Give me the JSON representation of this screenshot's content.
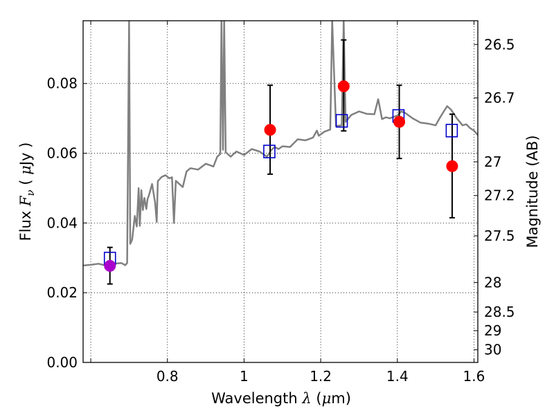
{
  "chart_data": {
    "type": "scatter",
    "xlabel": {
      "prefix": "Wavelength",
      "symbol": "λ",
      "unit_open": "(",
      "unit_mu": "μ",
      "unit_rest": "m)"
    },
    "ylabel": {
      "prefix": "Flux",
      "symbol": "F",
      "subscript": "ν",
      "unit_open": "(",
      "unit_mu": "μ",
      "unit_rest": "Jy",
      "unit_close": ")"
    },
    "y2label": "Magnitude (AB)",
    "xlim": [
      0.58,
      1.61
    ],
    "ylim": [
      0.0,
      0.098
    ],
    "x_ticks": [
      {
        "value": 0.6,
        "label": ""
      },
      {
        "value": 0.8,
        "label": "0.8"
      },
      {
        "value": 1.0,
        "label": "1"
      },
      {
        "value": 1.2,
        "label": "1.2"
      },
      {
        "value": 1.4,
        "label": "1.4"
      },
      {
        "value": 1.6,
        "label": "1.6"
      }
    ],
    "y_ticks": [
      {
        "value": 0.0,
        "label": "0.00"
      },
      {
        "value": 0.02,
        "label": "0.02"
      },
      {
        "value": 0.04,
        "label": "0.04"
      },
      {
        "value": 0.06,
        "label": "0.06"
      },
      {
        "value": 0.08,
        "label": "0.08"
      }
    ],
    "mag_ticks": [
      {
        "value": 26.5,
        "label": "26.5"
      },
      {
        "value": 26.7,
        "label": "26.7"
      },
      {
        "value": 27,
        "label": "27"
      },
      {
        "value": 27.2,
        "label": "27.2"
      },
      {
        "value": 27.5,
        "label": "27.5"
      },
      {
        "value": 28,
        "label": "28"
      },
      {
        "value": 28.5,
        "label": "28.5"
      },
      {
        "value": 29,
        "label": "29"
      },
      {
        "value": 30,
        "label": "30"
      }
    ],
    "grid": true,
    "series": [
      {
        "kind": "line",
        "color": "#808080",
        "points": [
          [
            0.58,
            0.0278
          ],
          [
            0.6,
            0.028
          ],
          [
            0.62,
            0.0283
          ],
          [
            0.64,
            0.0278
          ],
          [
            0.66,
            0.0283
          ],
          [
            0.68,
            0.0285
          ],
          [
            0.69,
            0.0279
          ],
          [
            0.695,
            0.0285
          ],
          [
            0.7,
            0.098
          ],
          [
            0.703,
            0.034
          ],
          [
            0.708,
            0.0352
          ],
          [
            0.715,
            0.042
          ],
          [
            0.72,
            0.039
          ],
          [
            0.725,
            0.05
          ],
          [
            0.728,
            0.0392
          ],
          [
            0.732,
            0.0494
          ],
          [
            0.736,
            0.0437
          ],
          [
            0.74,
            0.0472
          ],
          [
            0.745,
            0.044
          ],
          [
            0.748,
            0.0468
          ],
          [
            0.752,
            0.048
          ],
          [
            0.76,
            0.0512
          ],
          [
            0.768,
            0.0458
          ],
          [
            0.772,
            0.0403
          ],
          [
            0.775,
            0.052
          ],
          [
            0.785,
            0.0532
          ],
          [
            0.795,
            0.0537
          ],
          [
            0.805,
            0.0528
          ],
          [
            0.812,
            0.0531
          ],
          [
            0.817,
            0.04
          ],
          [
            0.822,
            0.0521
          ],
          [
            0.83,
            0.0513
          ],
          [
            0.84,
            0.0503
          ],
          [
            0.85,
            0.0548
          ],
          [
            0.86,
            0.0557
          ],
          [
            0.88,
            0.0553
          ],
          [
            0.9,
            0.057
          ],
          [
            0.92,
            0.0562
          ],
          [
            0.93,
            0.059
          ],
          [
            0.938,
            0.0598
          ],
          [
            0.941,
            0.098
          ],
          [
            0.945,
            0.061
          ],
          [
            0.948,
            0.098
          ],
          [
            0.952,
            0.0603
          ],
          [
            0.965,
            0.059
          ],
          [
            0.98,
            0.0605
          ],
          [
            1.0,
            0.0595
          ],
          [
            1.02,
            0.0612
          ],
          [
            1.04,
            0.0605
          ],
          [
            1.06,
            0.059
          ],
          [
            1.07,
            0.0608
          ],
          [
            1.08,
            0.0618
          ],
          [
            1.09,
            0.0612
          ],
          [
            1.1,
            0.062
          ],
          [
            1.12,
            0.0618
          ],
          [
            1.14,
            0.064
          ],
          [
            1.16,
            0.0637
          ],
          [
            1.18,
            0.0645
          ],
          [
            1.19,
            0.0665
          ],
          [
            1.195,
            0.065
          ],
          [
            1.21,
            0.0662
          ],
          [
            1.225,
            0.0668
          ],
          [
            1.23,
            0.098
          ],
          [
            1.24,
            0.0678
          ],
          [
            1.255,
            0.068
          ],
          [
            1.26,
            0.098
          ],
          [
            1.265,
            0.069
          ],
          [
            1.28,
            0.071
          ],
          [
            1.3,
            0.072
          ],
          [
            1.32,
            0.0713
          ],
          [
            1.34,
            0.0712
          ],
          [
            1.35,
            0.0755
          ],
          [
            1.36,
            0.0698
          ],
          [
            1.37,
            0.0703
          ],
          [
            1.38,
            0.07
          ],
          [
            1.4,
            0.0708
          ],
          [
            1.41,
            0.072
          ],
          [
            1.42,
            0.0716
          ],
          [
            1.44,
            0.07
          ],
          [
            1.46,
            0.0688
          ],
          [
            1.48,
            0.0685
          ],
          [
            1.5,
            0.068
          ],
          [
            1.51,
            0.07
          ],
          [
            1.52,
            0.0718
          ],
          [
            1.53,
            0.0735
          ],
          [
            1.54,
            0.0725
          ],
          [
            1.555,
            0.07
          ],
          [
            1.57,
            0.068
          ],
          [
            1.58,
            0.0683
          ],
          [
            1.59,
            0.0672
          ],
          [
            1.6,
            0.0665
          ],
          [
            1.61,
            0.0652
          ]
        ]
      },
      {
        "kind": "open-square",
        "color": "#0000cc",
        "points": [
          [
            0.65,
            0.0298
          ],
          [
            1.066,
            0.0605
          ],
          [
            1.255,
            0.0693
          ],
          [
            1.403,
            0.0707
          ],
          [
            1.542,
            0.0665
          ]
        ]
      },
      {
        "kind": "filled-circle",
        "color": "#ff0000",
        "points": [
          {
            "x": 1.068,
            "y": 0.0667,
            "lo": 0.054,
            "hi": 0.0795
          },
          {
            "x": 1.26,
            "y": 0.0792,
            "lo": 0.0664,
            "hi": 0.0925
          },
          {
            "x": 1.405,
            "y": 0.069,
            "lo": 0.0585,
            "hi": 0.0795
          },
          {
            "x": 1.543,
            "y": 0.0563,
            "lo": 0.0415,
            "hi": 0.0712
          }
        ]
      },
      {
        "kind": "filled-circle",
        "color": "#aa00cc",
        "points": [
          {
            "x": 0.65,
            "y": 0.0277,
            "lo": 0.0225,
            "hi": 0.033
          }
        ]
      }
    ]
  }
}
